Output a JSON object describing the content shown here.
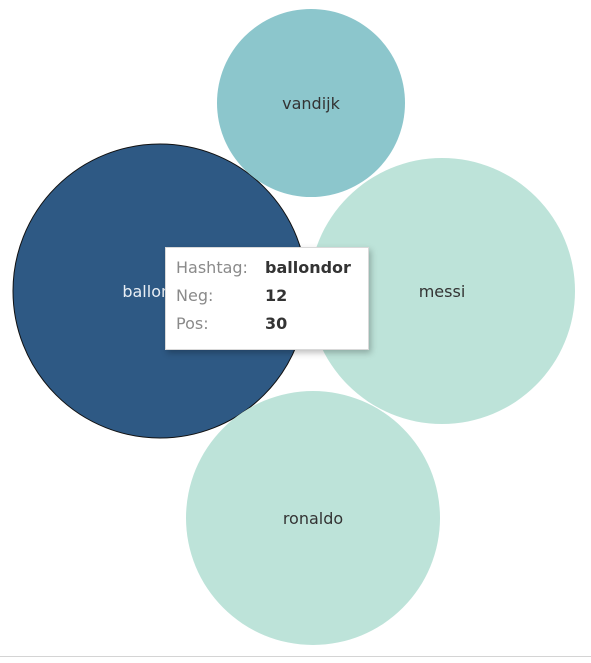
{
  "chart_data": {
    "type": "packed-bubble",
    "size_measure": "Pos",
    "items": [
      {
        "hashtag": "ballondor",
        "color": "#2e5984",
        "selected": true
      },
      {
        "hashtag": "vandijk",
        "color": "#8cc6cc"
      },
      {
        "hashtag": "messi",
        "color": "#bde3d9"
      },
      {
        "hashtag": "ronaldo",
        "color": "#bde3d9"
      }
    ]
  },
  "tooltip": {
    "rows": [
      {
        "key": "Hashtag:",
        "value": "ballondor"
      },
      {
        "key": "Neg:",
        "value": "12"
      },
      {
        "key": "Pos:",
        "value": "30"
      }
    ]
  }
}
